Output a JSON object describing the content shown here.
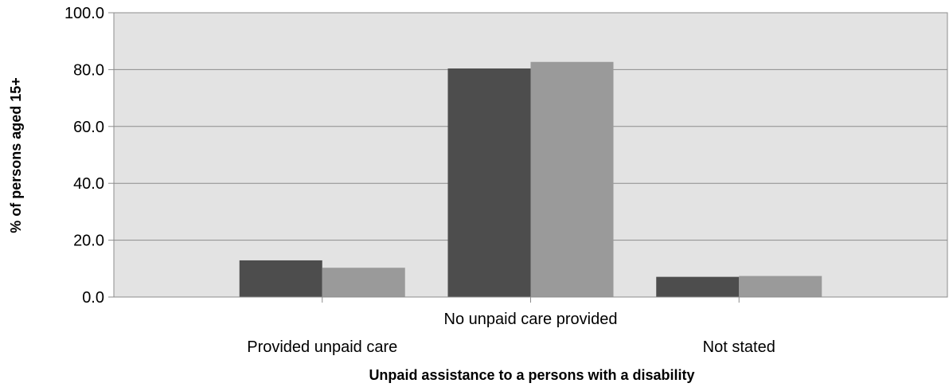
{
  "chart_data": {
    "type": "bar",
    "title": "",
    "xlabel": "Unpaid assistance to a persons with a disability",
    "ylabel": "% of persons aged 15+",
    "categories": [
      "Provided unpaid care",
      "No unpaid care provided",
      "Not stated"
    ],
    "series": [
      {
        "values": [
          12.9,
          80.4,
          7.1
        ],
        "color": "#4d4d4d"
      },
      {
        "values": [
          10.3,
          82.7,
          7.4
        ],
        "color": "#9a9a9a"
      }
    ],
    "ylim": [
      0,
      100
    ],
    "yticks": [
      "0.0",
      "20.0",
      "40.0",
      "60.0",
      "80.0",
      "100.0"
    ],
    "grid": true,
    "legend": "none",
    "colors": {
      "plot_background": "#e3e3e3",
      "gridline": "#8c8c8c"
    }
  }
}
